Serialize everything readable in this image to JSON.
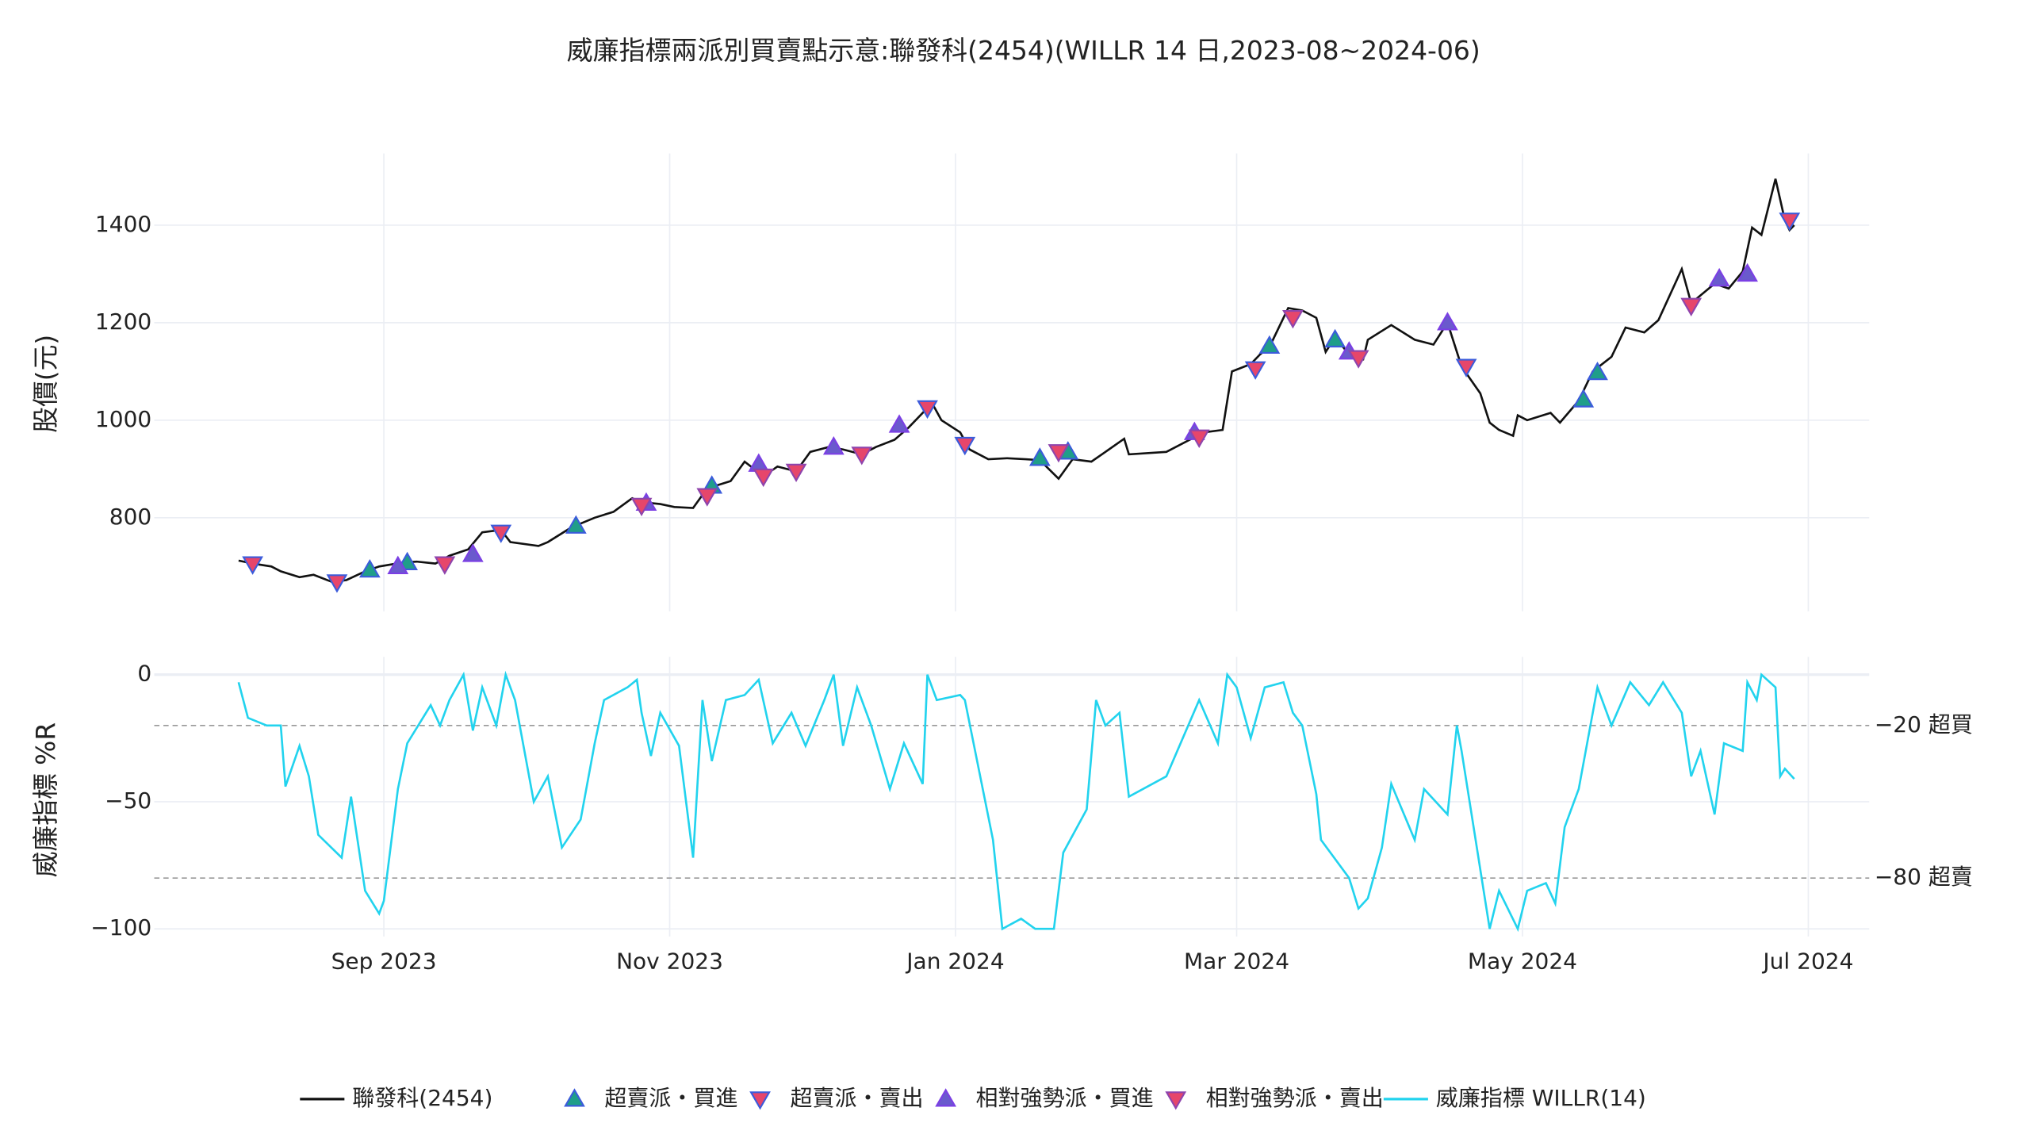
{
  "chart_data": [
    {
      "type": "line",
      "title": "威廉指標兩派別買賣點示意:聯發科(2454)(WILLR 14 日,2023-08~2024-06)",
      "ylabel": "股價(元)",
      "xlim": [
        "2023-07-14",
        "2024-07-14"
      ],
      "ylim": [
        608,
        1547
      ],
      "yticks": [
        800,
        1000,
        1200,
        1400
      ],
      "grid": true,
      "series": [
        {
          "name": "聯發科(2454)",
          "mode": "line",
          "color": "#111111",
          "x": [
            "2023-08-01",
            "2023-08-04",
            "2023-08-08",
            "2023-08-10",
            "2023-08-14",
            "2023-08-17",
            "2023-08-21",
            "2023-08-24",
            "2023-08-28",
            "2023-08-31",
            "2023-09-05",
            "2023-09-08",
            "2023-09-12",
            "2023-09-15",
            "2023-09-19",
            "2023-09-22",
            "2023-09-26",
            "2023-09-28",
            "2023-10-04",
            "2023-10-06",
            "2023-10-11",
            "2023-10-16",
            "2023-10-20",
            "2023-10-24",
            "2023-10-26",
            "2023-10-30",
            "2023-11-02",
            "2023-11-06",
            "2023-11-09",
            "2023-11-14",
            "2023-11-17",
            "2023-11-21",
            "2023-11-24",
            "2023-11-28",
            "2023-12-01",
            "2023-12-05",
            "2023-12-08",
            "2023-12-12",
            "2023-12-15",
            "2023-12-19",
            "2023-12-22",
            "2023-12-27",
            "2023-12-29",
            "2024-01-02",
            "2024-01-04",
            "2024-01-08",
            "2024-01-12",
            "2024-01-16",
            "2024-01-19",
            "2024-01-23",
            "2024-01-26",
            "2024-01-30",
            "2024-02-02",
            "2024-02-06",
            "2024-02-07",
            "2024-02-15",
            "2024-02-21",
            "2024-02-23",
            "2024-02-27",
            "2024-02-29",
            "2024-03-04",
            "2024-03-06",
            "2024-03-08",
            "2024-03-12",
            "2024-03-15",
            "2024-03-18",
            "2024-03-20",
            "2024-03-22",
            "2024-03-25",
            "2024-03-28",
            "2024-03-29",
            "2024-04-03",
            "2024-04-08",
            "2024-04-12",
            "2024-04-15",
            "2024-04-18",
            "2024-04-22",
            "2024-04-24",
            "2024-04-26",
            "2024-04-29",
            "2024-04-30",
            "2024-05-02",
            "2024-05-07",
            "2024-05-09",
            "2024-05-13",
            "2024-05-16",
            "2024-05-20",
            "2024-05-23",
            "2024-05-27",
            "2024-05-30",
            "2024-06-04",
            "2024-06-06",
            "2024-06-11",
            "2024-06-14",
            "2024-06-17",
            "2024-06-19",
            "2024-06-21",
            "2024-06-24",
            "2024-06-26",
            "2024-06-27",
            "2024-06-28"
          ],
          "values": [
            712,
            706,
            700,
            690,
            678,
            683,
            668,
            672,
            690,
            700,
            708,
            710,
            706,
            722,
            735,
            770,
            775,
            750,
            742,
            750,
            780,
            800,
            812,
            840,
            832,
            828,
            822,
            820,
            860,
            875,
            915,
            885,
            905,
            895,
            935,
            945,
            940,
            930,
            945,
            960,
            985,
            1035,
            1000,
            975,
            940,
            920,
            922,
            920,
            918,
            880,
            920,
            915,
            935,
            962,
            930,
            935,
            965,
            975,
            980,
            1100,
            1115,
            1135,
            1150,
            1230,
            1225,
            1210,
            1140,
            1170,
            1135,
            1125,
            1165,
            1195,
            1165,
            1155,
            1200,
            1110,
            1055,
            995,
            980,
            968,
            1010,
            1000,
            1015,
            995,
            1040,
            1100,
            1130,
            1190,
            1180,
            1205,
            1310,
            1240,
            1280,
            1270,
            1305,
            1395,
            1380,
            1495,
            1410,
            1390,
            1400
          ]
        },
        {
          "name": "超賣派・買進",
          "mode": "triangle-up",
          "color": "#1f9e89",
          "edge": "#3b5bdb",
          "x": [
            "2023-08-29",
            "2023-09-06",
            "2023-10-12",
            "2023-11-10",
            "2024-01-19",
            "2024-01-25",
            "2024-03-08",
            "2024-03-22",
            "2024-05-14",
            "2024-05-17"
          ],
          "values": [
            693,
            708,
            783,
            865,
            922,
            935,
            1152,
            1165,
            1042,
            1098
          ]
        },
        {
          "name": "超賣派・賣出",
          "mode": "triangle-down",
          "color": "#e6466b",
          "edge": "#3b5bdb",
          "x": [
            "2023-08-04",
            "2023-08-22",
            "2023-09-26",
            "2023-12-26",
            "2024-01-03",
            "2024-03-05",
            "2024-04-19",
            "2024-06-27"
          ],
          "values": [
            705,
            668,
            770,
            1025,
            950,
            1105,
            1110,
            1410
          ]
        },
        {
          "name": "相對強勢派・買進",
          "mode": "triangle-up",
          "color": "#6a5acd",
          "edge": "#7b3fe4",
          "x": [
            "2023-09-04",
            "2023-09-20",
            "2023-10-27",
            "2023-11-20",
            "2023-12-06",
            "2023-12-20",
            "2024-02-21",
            "2024-03-25",
            "2024-04-15",
            "2024-06-12",
            "2024-06-18"
          ],
          "values": [
            700,
            725,
            830,
            910,
            945,
            990,
            975,
            1140,
            1200,
            1290,
            1300
          ]
        },
        {
          "name": "相對強勢派・賣出",
          "mode": "triangle-down",
          "color": "#e6466b",
          "edge": "#8e44ad",
          "x": [
            "2023-09-14",
            "2023-10-26",
            "2023-11-09",
            "2023-11-21",
            "2023-11-28",
            "2023-12-12",
            "2024-01-23",
            "2024-02-22",
            "2024-03-13",
            "2024-03-27",
            "2024-06-06"
          ],
          "values": [
            705,
            825,
            845,
            885,
            895,
            930,
            935,
            965,
            1210,
            1128,
            1235
          ]
        }
      ]
    },
    {
      "type": "line",
      "ylabel": "威廉指標 %R",
      "xlim": [
        "2023-07-14",
        "2024-07-14"
      ],
      "ylim": [
        -103,
        7
      ],
      "yticks": [
        0,
        {
          "value": -50,
          "label": "−50"
        },
        {
          "value": -100,
          "label": "−100"
        }
      ],
      "xticks": [
        {
          "value": "2023-09-01",
          "label": "Sep 2023"
        },
        {
          "value": "2023-11-01",
          "label": "Nov 2023"
        },
        {
          "value": "2024-01-01",
          "label": "Jan 2024"
        },
        {
          "value": "2024-03-01",
          "label": "Mar 2024"
        },
        {
          "value": "2024-05-01",
          "label": "May 2024"
        },
        {
          "value": "2024-07-01",
          "label": "Jul 2024"
        }
      ],
      "grid": true,
      "hlines": [
        {
          "value": -20,
          "label": "−20 超買"
        },
        {
          "value": -80,
          "label": "−80 超賣"
        }
      ],
      "series": [
        {
          "name": "威廉指標 WILLR(14)",
          "mode": "line",
          "color": "#22d3ee",
          "x": [
            "2023-08-01",
            "2023-08-03",
            "2023-08-07",
            "2023-08-10",
            "2023-08-11",
            "2023-08-14",
            "2023-08-16",
            "2023-08-18",
            "2023-08-23",
            "2023-08-25",
            "2023-08-28",
            "2023-08-31",
            "2023-09-01",
            "2023-09-04",
            "2023-09-06",
            "2023-09-11",
            "2023-09-13",
            "2023-09-15",
            "2023-09-18",
            "2023-09-20",
            "2023-09-22",
            "2023-09-25",
            "2023-09-27",
            "2023-09-29",
            "2023-10-03",
            "2023-10-06",
            "2023-10-09",
            "2023-10-13",
            "2023-10-16",
            "2023-10-18",
            "2023-10-23",
            "2023-10-25",
            "2023-10-26",
            "2023-10-28",
            "2023-10-30",
            "2023-11-03",
            "2023-11-06",
            "2023-11-08",
            "2023-11-10",
            "2023-11-13",
            "2023-11-17",
            "2023-11-20",
            "2023-11-23",
            "2023-11-27",
            "2023-11-30",
            "2023-12-04",
            "2023-12-06",
            "2023-12-08",
            "2023-12-11",
            "2023-12-14",
            "2023-12-18",
            "2023-12-21",
            "2023-12-25",
            "2023-12-26",
            "2023-12-28",
            "2024-01-02",
            "2024-01-03",
            "2024-01-09",
            "2024-01-11",
            "2024-01-15",
            "2024-01-18",
            "2024-01-22",
            "2024-01-24",
            "2024-01-29",
            "2024-01-31",
            "2024-02-02",
            "2024-02-05",
            "2024-02-07",
            "2024-02-15",
            "2024-02-22",
            "2024-02-26",
            "2024-02-28",
            "2024-03-01",
            "2024-03-04",
            "2024-03-07",
            "2024-03-11",
            "2024-03-13",
            "2024-03-15",
            "2024-03-18",
            "2024-03-19",
            "2024-03-25",
            "2024-03-27",
            "2024-03-29",
            "2024-04-01",
            "2024-04-03",
            "2024-04-08",
            "2024-04-10",
            "2024-04-15",
            "2024-04-17",
            "2024-04-18",
            "2024-04-24",
            "2024-04-26",
            "2024-04-30",
            "2024-05-02",
            "2024-05-06",
            "2024-05-08",
            "2024-05-10",
            "2024-05-13",
            "2024-05-17",
            "2024-05-20",
            "2024-05-24",
            "2024-05-28",
            "2024-05-31",
            "2024-06-04",
            "2024-06-06",
            "2024-06-08",
            "2024-06-11",
            "2024-06-13",
            "2024-06-17",
            "2024-06-18",
            "2024-06-20",
            "2024-06-21",
            "2024-06-24",
            "2024-06-25",
            "2024-06-26",
            "2024-06-28"
          ],
          "values": [
            -3,
            -17,
            -20,
            -20,
            -44,
            -28,
            -40,
            -63,
            -72,
            -48,
            -85,
            -94,
            -89,
            -45,
            -27,
            -12,
            -20,
            -10,
            0,
            -22,
            -5,
            -20,
            0,
            -10,
            -50,
            -40,
            -68,
            -57,
            -27,
            -10,
            -5,
            -2,
            -15,
            -32,
            -15,
            -28,
            -72,
            -10,
            -34,
            -10,
            -8,
            -2,
            -27,
            -15,
            -28,
            -10,
            0,
            -28,
            -5,
            -20,
            -45,
            -27,
            -43,
            0,
            -10,
            -8,
            -10,
            -65,
            -100,
            -96,
            -100,
            -100,
            -70,
            -53,
            -10,
            -20,
            -15,
            -48,
            -40,
            -10,
            -27,
            0,
            -5,
            -25,
            -5,
            -3,
            -15,
            -20,
            -47,
            -65,
            -80,
            -92,
            -88,
            -68,
            -43,
            -65,
            -45,
            -55,
            -20,
            -30,
            -100,
            -85,
            -100,
            -85,
            -82,
            -90,
            -60,
            -45,
            -5,
            -20,
            -3,
            -12,
            -3,
            -15,
            -40,
            -30,
            -55,
            -27,
            -30,
            -3,
            -10,
            0,
            -5,
            -40,
            -37,
            -41
          ]
        }
      ]
    }
  ]
}
